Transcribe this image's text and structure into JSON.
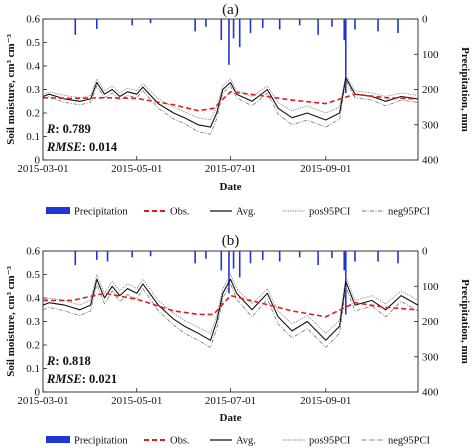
{
  "chart_data": [
    {
      "type": "line",
      "title": "(a)",
      "xlabel": "Date",
      "ylabel": "Soil moisture, cm³ cm⁻³",
      "y2label": "Precipitation, mm",
      "x_ticks": [
        "2015-03-01",
        "2015-05-01",
        "2015-07-01",
        "2015-09-01"
      ],
      "xlim": [
        "2015-03-01",
        "2015-10-31"
      ],
      "ylim": [
        0,
        0.6
      ],
      "y_ticks": [
        "0",
        "0.1",
        "0.2",
        "0.3",
        "0.4",
        "0.5",
        "0.6"
      ],
      "y2lim": [
        0,
        400
      ],
      "y2_reversed": true,
      "y2_ticks": [
        "0",
        "100",
        "200",
        "300",
        "400"
      ],
      "stats": {
        "R_label": "R",
        "R": "0.789",
        "RMSE_label": "RMSE",
        "RMSE": "0.014"
      },
      "legend": [
        "Precipitation",
        "Obs.",
        "Avg.",
        "pos95PCI",
        "neg95PCI"
      ],
      "legend_position": "below plot",
      "series": [
        {
          "name": "Obs.",
          "style": "dashed",
          "color": "#e41a1c",
          "x": [
            "2015-03-01",
            "2015-03-20",
            "2015-04-10",
            "2015-05-01",
            "2015-05-25",
            "2015-06-10",
            "2015-06-20",
            "2015-07-01",
            "2015-07-20",
            "2015-08-10",
            "2015-09-01",
            "2015-09-20",
            "2015-10-10",
            "2015-10-31"
          ],
          "y": [
            0.265,
            0.262,
            0.265,
            0.262,
            0.235,
            0.21,
            0.22,
            0.29,
            0.275,
            0.255,
            0.24,
            0.28,
            0.265,
            0.26
          ]
        },
        {
          "name": "Avg.",
          "style": "solid",
          "color": "#111111",
          "x": [
            "2015-03-01",
            "2015-03-05",
            "2015-03-15",
            "2015-03-25",
            "2015-04-01",
            "2015-04-05",
            "2015-04-10",
            "2015-04-15",
            "2015-04-20",
            "2015-04-25",
            "2015-05-01",
            "2015-05-05",
            "2015-05-15",
            "2015-05-25",
            "2015-06-01",
            "2015-06-10",
            "2015-06-18",
            "2015-06-22",
            "2015-06-26",
            "2015-07-01",
            "2015-07-05",
            "2015-07-15",
            "2015-07-25",
            "2015-08-01",
            "2015-08-10",
            "2015-08-20",
            "2015-09-01",
            "2015-09-10",
            "2015-09-14",
            "2015-09-20",
            "2015-10-01",
            "2015-10-10",
            "2015-10-20",
            "2015-10-31"
          ],
          "y": [
            0.27,
            0.28,
            0.26,
            0.25,
            0.26,
            0.33,
            0.28,
            0.3,
            0.27,
            0.29,
            0.28,
            0.31,
            0.24,
            0.2,
            0.18,
            0.15,
            0.14,
            0.2,
            0.3,
            0.33,
            0.28,
            0.25,
            0.3,
            0.22,
            0.18,
            0.2,
            0.17,
            0.2,
            0.35,
            0.28,
            0.27,
            0.25,
            0.27,
            0.26
          ]
        },
        {
          "name": "pos95PCI",
          "style": "dotted",
          "color": "#777777",
          "x": [
            "2015-03-01",
            "2015-03-05",
            "2015-03-15",
            "2015-03-25",
            "2015-04-01",
            "2015-04-05",
            "2015-04-10",
            "2015-04-15",
            "2015-04-20",
            "2015-04-25",
            "2015-05-01",
            "2015-05-05",
            "2015-05-15",
            "2015-05-25",
            "2015-06-01",
            "2015-06-10",
            "2015-06-18",
            "2015-06-22",
            "2015-06-26",
            "2015-07-01",
            "2015-07-05",
            "2015-07-15",
            "2015-07-25",
            "2015-08-01",
            "2015-08-10",
            "2015-08-20",
            "2015-09-01",
            "2015-09-10",
            "2015-09-14",
            "2015-09-20",
            "2015-10-01",
            "2015-10-10",
            "2015-10-20",
            "2015-10-31"
          ],
          "y": [
            0.28,
            0.29,
            0.275,
            0.265,
            0.275,
            0.345,
            0.295,
            0.315,
            0.285,
            0.305,
            0.295,
            0.325,
            0.26,
            0.225,
            0.205,
            0.18,
            0.17,
            0.225,
            0.315,
            0.345,
            0.295,
            0.27,
            0.315,
            0.245,
            0.21,
            0.23,
            0.2,
            0.225,
            0.36,
            0.295,
            0.285,
            0.27,
            0.285,
            0.275
          ]
        },
        {
          "name": "neg95PCI",
          "style": "dashdot",
          "color": "#777777",
          "x": [
            "2015-03-01",
            "2015-03-05",
            "2015-03-15",
            "2015-03-25",
            "2015-04-01",
            "2015-04-05",
            "2015-04-10",
            "2015-04-15",
            "2015-04-20",
            "2015-04-25",
            "2015-05-01",
            "2015-05-05",
            "2015-05-15",
            "2015-05-25",
            "2015-06-01",
            "2015-06-10",
            "2015-06-18",
            "2015-06-22",
            "2015-06-26",
            "2015-07-01",
            "2015-07-05",
            "2015-07-15",
            "2015-07-25",
            "2015-08-01",
            "2015-08-10",
            "2015-08-20",
            "2015-09-01",
            "2015-09-10",
            "2015-09-14",
            "2015-09-20",
            "2015-10-01",
            "2015-10-10",
            "2015-10-20",
            "2015-10-31"
          ],
          "y": [
            0.26,
            0.27,
            0.245,
            0.235,
            0.245,
            0.315,
            0.265,
            0.285,
            0.255,
            0.275,
            0.265,
            0.295,
            0.22,
            0.175,
            0.155,
            0.12,
            0.11,
            0.175,
            0.285,
            0.315,
            0.265,
            0.23,
            0.285,
            0.195,
            0.15,
            0.17,
            0.14,
            0.175,
            0.34,
            0.265,
            0.255,
            0.23,
            0.255,
            0.245
          ]
        }
      ],
      "precipitation": {
        "name": "Precipitation",
        "color": "#1f35d6",
        "x": [
          "2015-03-22",
          "2015-04-05",
          "2015-04-28",
          "2015-05-10",
          "2015-06-08",
          "2015-06-15",
          "2015-06-25",
          "2015-06-30",
          "2015-07-03",
          "2015-07-07",
          "2015-07-14",
          "2015-07-22",
          "2015-08-02",
          "2015-08-15",
          "2015-08-27",
          "2015-09-05",
          "2015-09-13",
          "2015-09-14",
          "2015-09-20",
          "2015-10-05",
          "2015-10-18"
        ],
        "y": [
          45,
          28,
          18,
          12,
          35,
          22,
          60,
          130,
          55,
          80,
          40,
          25,
          30,
          18,
          45,
          22,
          60,
          210,
          30,
          35,
          40
        ]
      }
    },
    {
      "type": "line",
      "title": "(b)",
      "xlabel": "Date",
      "ylabel": "Soil moisture, cm³ cm⁻³",
      "y2label": "Precipitation, mm",
      "x_ticks": [
        "2015-03-01",
        "2015-05-01",
        "2015-07-01",
        "2015-09-01"
      ],
      "xlim": [
        "2015-03-01",
        "2015-10-31"
      ],
      "ylim": [
        0,
        0.6
      ],
      "y_ticks": [
        "0",
        "0.1",
        "0.2",
        "0.3",
        "0.4",
        "0.5",
        "0.6"
      ],
      "y2lim": [
        0,
        400
      ],
      "y2_reversed": true,
      "y2_ticks": [
        "0",
        "100",
        "200",
        "300",
        "400"
      ],
      "stats": {
        "R_label": "R",
        "R": "0.818",
        "RMSE_label": "RMSE",
        "RMSE": "0.021"
      },
      "legend": [
        "Precipitation",
        "Obs.",
        "Avg.",
        "pos95PCI",
        "neg95PCI"
      ],
      "legend_position": "below plot",
      "series": [
        {
          "name": "Obs.",
          "style": "dashed",
          "color": "#e41a1c",
          "x": [
            "2015-03-01",
            "2015-03-20",
            "2015-04-10",
            "2015-05-01",
            "2015-05-25",
            "2015-06-10",
            "2015-06-20",
            "2015-07-01",
            "2015-07-20",
            "2015-08-10",
            "2015-09-01",
            "2015-09-20",
            "2015-10-10",
            "2015-10-31"
          ],
          "y": [
            0.39,
            0.39,
            0.42,
            0.395,
            0.345,
            0.33,
            0.33,
            0.41,
            0.38,
            0.345,
            0.32,
            0.38,
            0.36,
            0.35
          ]
        },
        {
          "name": "Avg.",
          "style": "solid",
          "color": "#111111",
          "x": [
            "2015-03-01",
            "2015-03-05",
            "2015-03-15",
            "2015-03-25",
            "2015-04-01",
            "2015-04-05",
            "2015-04-10",
            "2015-04-15",
            "2015-04-20",
            "2015-04-25",
            "2015-05-01",
            "2015-05-05",
            "2015-05-15",
            "2015-05-25",
            "2015-06-01",
            "2015-06-10",
            "2015-06-18",
            "2015-06-22",
            "2015-06-26",
            "2015-07-01",
            "2015-07-05",
            "2015-07-15",
            "2015-07-25",
            "2015-08-01",
            "2015-08-10",
            "2015-08-20",
            "2015-09-01",
            "2015-09-10",
            "2015-09-14",
            "2015-09-20",
            "2015-10-01",
            "2015-10-10",
            "2015-10-20",
            "2015-10-31"
          ],
          "y": [
            0.37,
            0.38,
            0.37,
            0.35,
            0.37,
            0.48,
            0.4,
            0.45,
            0.41,
            0.44,
            0.42,
            0.46,
            0.37,
            0.31,
            0.28,
            0.25,
            0.22,
            0.3,
            0.42,
            0.48,
            0.42,
            0.35,
            0.42,
            0.32,
            0.26,
            0.3,
            0.22,
            0.28,
            0.47,
            0.37,
            0.39,
            0.35,
            0.41,
            0.37
          ]
        },
        {
          "name": "pos95PCI",
          "style": "dotted",
          "color": "#777777",
          "x": [
            "2015-03-01",
            "2015-03-05",
            "2015-03-15",
            "2015-03-25",
            "2015-04-01",
            "2015-04-05",
            "2015-04-10",
            "2015-04-15",
            "2015-04-20",
            "2015-04-25",
            "2015-05-01",
            "2015-05-05",
            "2015-05-15",
            "2015-05-25",
            "2015-06-01",
            "2015-06-10",
            "2015-06-18",
            "2015-06-22",
            "2015-06-26",
            "2015-07-01",
            "2015-07-05",
            "2015-07-15",
            "2015-07-25",
            "2015-08-01",
            "2015-08-10",
            "2015-08-20",
            "2015-09-01",
            "2015-09-10",
            "2015-09-14",
            "2015-09-20",
            "2015-10-01",
            "2015-10-10",
            "2015-10-20",
            "2015-10-31"
          ],
          "y": [
            0.39,
            0.4,
            0.39,
            0.37,
            0.39,
            0.5,
            0.42,
            0.47,
            0.43,
            0.46,
            0.44,
            0.48,
            0.39,
            0.335,
            0.305,
            0.275,
            0.25,
            0.325,
            0.44,
            0.5,
            0.44,
            0.375,
            0.44,
            0.345,
            0.29,
            0.325,
            0.25,
            0.305,
            0.49,
            0.39,
            0.41,
            0.375,
            0.43,
            0.39
          ]
        },
        {
          "name": "neg95PCI",
          "style": "dashdot",
          "color": "#777777",
          "x": [
            "2015-03-01",
            "2015-03-05",
            "2015-03-15",
            "2015-03-25",
            "2015-04-01",
            "2015-04-05",
            "2015-04-10",
            "2015-04-15",
            "2015-04-20",
            "2015-04-25",
            "2015-05-01",
            "2015-05-05",
            "2015-05-15",
            "2015-05-25",
            "2015-06-01",
            "2015-06-10",
            "2015-06-18",
            "2015-06-22",
            "2015-06-26",
            "2015-07-01",
            "2015-07-05",
            "2015-07-15",
            "2015-07-25",
            "2015-08-01",
            "2015-08-10",
            "2015-08-20",
            "2015-09-01",
            "2015-09-10",
            "2015-09-14",
            "2015-09-20",
            "2015-10-01",
            "2015-10-10",
            "2015-10-20",
            "2015-10-31"
          ],
          "y": [
            0.35,
            0.36,
            0.345,
            0.325,
            0.345,
            0.46,
            0.375,
            0.43,
            0.385,
            0.415,
            0.395,
            0.44,
            0.345,
            0.285,
            0.25,
            0.22,
            0.19,
            0.27,
            0.4,
            0.46,
            0.395,
            0.32,
            0.395,
            0.29,
            0.23,
            0.27,
            0.19,
            0.25,
            0.45,
            0.345,
            0.365,
            0.32,
            0.385,
            0.345
          ]
        }
      ],
      "precipitation": {
        "name": "Precipitation",
        "color": "#1f35d6",
        "x": [
          "2015-03-22",
          "2015-04-05",
          "2015-04-12",
          "2015-04-28",
          "2015-05-10",
          "2015-06-08",
          "2015-06-15",
          "2015-06-25",
          "2015-06-30",
          "2015-07-03",
          "2015-07-07",
          "2015-07-14",
          "2015-07-22",
          "2015-08-02",
          "2015-08-15",
          "2015-08-27",
          "2015-09-05",
          "2015-09-13",
          "2015-09-14",
          "2015-09-20",
          "2015-10-05",
          "2015-10-18"
        ],
        "y": [
          40,
          25,
          30,
          18,
          15,
          35,
          22,
          55,
          120,
          50,
          75,
          35,
          25,
          30,
          18,
          40,
          20,
          55,
          180,
          30,
          30,
          35
        ]
      }
    }
  ]
}
